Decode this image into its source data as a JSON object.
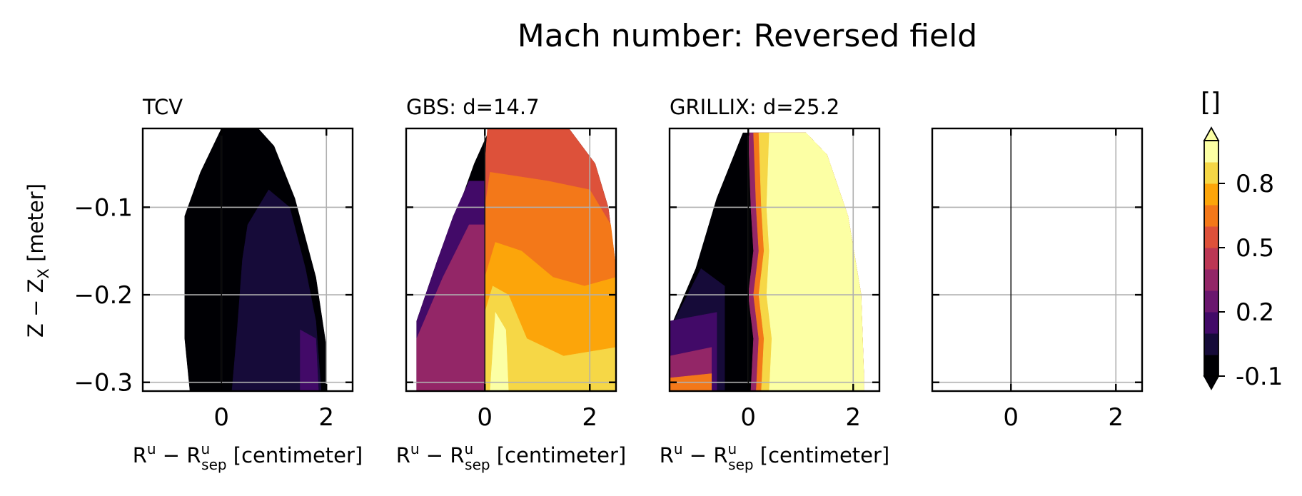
{
  "figure": {
    "title": "Mach number: Reversed field",
    "shared_ylabel_main": "Z − Z",
    "shared_ylabel_sub": "X",
    "shared_ylabel_unit": " [meter]",
    "xlabel_main": "R",
    "xlabel_sup1": "u",
    "xlabel_mid": " − R",
    "xlabel_sup2": "u",
    "xlabel_sub": "sep",
    "xlabel_unit": " [centimeter]"
  },
  "colorbar": {
    "unit_label": "[]",
    "tick_labels": [
      "-0.1",
      "0.2",
      "0.5",
      "0.8"
    ],
    "tick_values": [
      -0.1,
      0.2,
      0.5,
      0.8
    ],
    "levels": [
      -0.1,
      0.0,
      0.1,
      0.2,
      0.3,
      0.4,
      0.5,
      0.6,
      0.7,
      0.8,
      0.9,
      1.0
    ],
    "colors": [
      "#000004",
      "#160b39",
      "#420a68",
      "#6a176e",
      "#932667",
      "#bc3754",
      "#dd513a",
      "#f37819",
      "#fca50a",
      "#f6d746",
      "#fcffa4"
    ],
    "extend": "both",
    "colormap": "inferno"
  },
  "chart_data": [
    {
      "type": "heatmap",
      "title": "TCV",
      "xlim": [
        -1.5,
        2.5
      ],
      "ylim": [
        -0.31,
        -0.01
      ],
      "x_ticks": [
        0,
        2
      ],
      "y_ticks": [
        -0.1,
        -0.2,
        -0.3
      ],
      "y_tick_labels": [
        "−0.1",
        "−0.2",
        "−0.3"
      ],
      "grid": true,
      "separatrix_x": 0,
      "boundary": [
        [
          0.0,
          -0.01
        ],
        [
          0.7,
          -0.01
        ],
        [
          1.0,
          -0.03
        ],
        [
          1.4,
          -0.09
        ],
        [
          1.8,
          -0.18
        ],
        [
          2.0,
          -0.26
        ],
        [
          2.0,
          -0.31
        ],
        [
          -0.6,
          -0.31
        ],
        [
          -0.7,
          -0.25
        ],
        [
          -0.7,
          -0.11
        ],
        [
          -0.4,
          -0.06
        ]
      ],
      "bands": [
        {
          "value": -0.1,
          "polygon": [
            [
              0.0,
              -0.01
            ],
            [
              0.7,
              -0.01
            ],
            [
              1.0,
              -0.03
            ],
            [
              1.4,
              -0.09
            ],
            [
              1.8,
              -0.18
            ],
            [
              2.0,
              -0.26
            ],
            [
              2.0,
              -0.31
            ],
            [
              -0.6,
              -0.31
            ],
            [
              -0.7,
              -0.25
            ],
            [
              -0.7,
              -0.11
            ],
            [
              -0.4,
              -0.06
            ]
          ]
        },
        {
          "value": 0.0,
          "polygon": [
            [
              0.5,
              -0.12
            ],
            [
              0.9,
              -0.08
            ],
            [
              1.3,
              -0.1
            ],
            [
              1.6,
              -0.17
            ],
            [
              1.8,
              -0.23
            ],
            [
              1.9,
              -0.31
            ],
            [
              0.2,
              -0.31
            ],
            [
              0.3,
              -0.24
            ],
            [
              0.4,
              -0.16
            ]
          ]
        },
        {
          "value": 0.1,
          "polygon": [
            [
              1.5,
              -0.24
            ],
            [
              1.8,
              -0.25
            ],
            [
              1.85,
              -0.31
            ],
            [
              1.5,
              -0.31
            ]
          ]
        }
      ]
    },
    {
      "type": "heatmap",
      "title": "GBS: d=14.7",
      "xlim": [
        -1.5,
        2.5
      ],
      "ylim": [
        -0.31,
        -0.01
      ],
      "x_ticks": [
        0,
        2
      ],
      "y_ticks": [
        -0.1,
        -0.2,
        -0.3
      ],
      "grid": true,
      "separatrix_x": 0,
      "boundary": [
        [
          0.1,
          -0.01
        ],
        [
          1.6,
          -0.01
        ],
        [
          2.1,
          -0.05
        ],
        [
          2.35,
          -0.1
        ],
        [
          2.5,
          -0.17
        ],
        [
          2.5,
          -0.31
        ],
        [
          -1.3,
          -0.31
        ],
        [
          -1.3,
          -0.23
        ],
        [
          -0.9,
          -0.16
        ],
        [
          -0.5,
          -0.1
        ],
        [
          -0.2,
          -0.05
        ]
      ],
      "bands": [
        {
          "value": -0.1,
          "polygon": [
            [
              0.1,
              -0.01
            ],
            [
              1.6,
              -0.01
            ],
            [
              2.1,
              -0.05
            ],
            [
              2.35,
              -0.1
            ],
            [
              2.5,
              -0.17
            ],
            [
              2.5,
              -0.31
            ],
            [
              -1.3,
              -0.31
            ],
            [
              -1.3,
              -0.23
            ],
            [
              -0.9,
              -0.16
            ],
            [
              -0.5,
              -0.1
            ],
            [
              -0.2,
              -0.05
            ]
          ]
        },
        {
          "value": 0.1,
          "polygon": [
            [
              -0.3,
              -0.07
            ],
            [
              0.0,
              -0.07
            ],
            [
              0.0,
              -0.31
            ],
            [
              -1.3,
              -0.31
            ],
            [
              -1.3,
              -0.23
            ],
            [
              -0.9,
              -0.16
            ],
            [
              -0.6,
              -0.11
            ]
          ]
        },
        {
          "value": 0.3,
          "polygon": [
            [
              -0.3,
              -0.12
            ],
            [
              0.0,
              -0.12
            ],
            [
              0.0,
              -0.31
            ],
            [
              -1.3,
              -0.31
            ],
            [
              -1.3,
              -0.25
            ],
            [
              -0.8,
              -0.18
            ]
          ]
        },
        {
          "value": 0.5,
          "polygon": [
            [
              0.05,
              -0.01
            ],
            [
              1.6,
              -0.01
            ],
            [
              2.1,
              -0.05
            ],
            [
              2.35,
              -0.1
            ],
            [
              2.5,
              -0.17
            ],
            [
              2.5,
              -0.31
            ],
            [
              0.0,
              -0.31
            ],
            [
              0.0,
              -0.05
            ]
          ]
        },
        {
          "value": 0.6,
          "polygon": [
            [
              0.1,
              -0.06
            ],
            [
              1.2,
              -0.07
            ],
            [
              2.0,
              -0.08
            ],
            [
              2.4,
              -0.12
            ],
            [
              2.5,
              -0.17
            ],
            [
              2.5,
              -0.31
            ],
            [
              0.0,
              -0.31
            ],
            [
              0.0,
              -0.1
            ]
          ]
        },
        {
          "value": 0.7,
          "polygon": [
            [
              0.2,
              -0.14
            ],
            [
              0.7,
              -0.15
            ],
            [
              1.3,
              -0.18
            ],
            [
              1.9,
              -0.19
            ],
            [
              2.5,
              -0.18
            ],
            [
              2.5,
              -0.31
            ],
            [
              0.0,
              -0.31
            ],
            [
              0.0,
              -0.18
            ]
          ]
        },
        {
          "value": 0.8,
          "polygon": [
            [
              0.15,
              -0.19
            ],
            [
              0.45,
              -0.2
            ],
            [
              0.8,
              -0.25
            ],
            [
              1.5,
              -0.27
            ],
            [
              2.5,
              -0.26
            ],
            [
              2.5,
              -0.31
            ],
            [
              0.0,
              -0.31
            ],
            [
              0.0,
              -0.22
            ]
          ]
        },
        {
          "value": 0.9,
          "polygon": [
            [
              0.2,
              -0.22
            ],
            [
              0.4,
              -0.24
            ],
            [
              0.45,
              -0.31
            ],
            [
              0.1,
              -0.31
            ]
          ]
        }
      ]
    },
    {
      "type": "heatmap",
      "title": "GRILLIX: d=25.2",
      "xlim": [
        -1.5,
        2.5
      ],
      "ylim": [
        -0.31,
        -0.01
      ],
      "x_ticks": [
        0,
        2
      ],
      "y_ticks": [
        -0.1,
        -0.2,
        -0.3
      ],
      "grid": true,
      "separatrix_x": 0,
      "boundary": [
        [
          -0.1,
          -0.015
        ],
        [
          1.1,
          -0.015
        ],
        [
          1.5,
          -0.04
        ],
        [
          1.9,
          -0.11
        ],
        [
          2.15,
          -0.2
        ],
        [
          2.2,
          -0.29
        ],
        [
          2.2,
          -0.31
        ],
        [
          -1.5,
          -0.31
        ],
        [
          -1.5,
          -0.24
        ],
        [
          -1.0,
          -0.17
        ],
        [
          -0.6,
          -0.09
        ]
      ],
      "bands": [
        {
          "value": -0.1,
          "polygon": [
            [
              -0.1,
              -0.015
            ],
            [
              1.1,
              -0.015
            ],
            [
              1.5,
              -0.04
            ],
            [
              1.9,
              -0.11
            ],
            [
              2.15,
              -0.2
            ],
            [
              2.2,
              -0.29
            ],
            [
              2.2,
              -0.31
            ],
            [
              -1.5,
              -0.31
            ],
            [
              -1.5,
              -0.24
            ],
            [
              -1.0,
              -0.17
            ],
            [
              -0.6,
              -0.09
            ]
          ]
        },
        {
          "value": 0.0,
          "polygon": [
            [
              -0.9,
              -0.17
            ],
            [
              -0.45,
              -0.19
            ],
            [
              -0.45,
              -0.31
            ],
            [
              -1.5,
              -0.31
            ],
            [
              -1.5,
              -0.24
            ]
          ]
        },
        {
          "value": 0.1,
          "polygon": [
            [
              -1.5,
              -0.23
            ],
            [
              -0.6,
              -0.22
            ],
            [
              -0.6,
              -0.31
            ],
            [
              -1.5,
              -0.31
            ]
          ]
        },
        {
          "value": 0.3,
          "polygon": [
            [
              -1.5,
              -0.27
            ],
            [
              -0.7,
              -0.26
            ],
            [
              -0.7,
              -0.31
            ],
            [
              -1.5,
              -0.31
            ]
          ]
        },
        {
          "value": 0.6,
          "polygon": [
            [
              -1.5,
              -0.295
            ],
            [
              -0.7,
              -0.29
            ],
            [
              -0.7,
              -0.31
            ],
            [
              -1.5,
              -0.31
            ]
          ]
        },
        {
          "value": 0.3,
          "polygon": [
            [
              0.0,
              -0.015
            ],
            [
              1.1,
              -0.015
            ],
            [
              1.5,
              -0.04
            ],
            [
              1.9,
              -0.11
            ],
            [
              2.15,
              -0.2
            ],
            [
              2.2,
              -0.29
            ],
            [
              2.2,
              -0.31
            ],
            [
              0.05,
              -0.31
            ],
            [
              0.1,
              -0.25
            ],
            [
              0.0,
              -0.2
            ],
            [
              0.1,
              -0.15
            ],
            [
              0.05,
              -0.1
            ]
          ]
        },
        {
          "value": 0.6,
          "polygon": [
            [
              0.1,
              -0.015
            ],
            [
              1.1,
              -0.015
            ],
            [
              1.5,
              -0.04
            ],
            [
              1.9,
              -0.11
            ],
            [
              2.15,
              -0.2
            ],
            [
              2.2,
              -0.29
            ],
            [
              2.2,
              -0.31
            ],
            [
              0.15,
              -0.31
            ],
            [
              0.2,
              -0.25
            ],
            [
              0.1,
              -0.2
            ],
            [
              0.2,
              -0.15
            ],
            [
              0.15,
              -0.1
            ]
          ]
        },
        {
          "value": 0.8,
          "polygon": [
            [
              0.2,
              -0.015
            ],
            [
              1.1,
              -0.015
            ],
            [
              1.5,
              -0.04
            ],
            [
              1.9,
              -0.11
            ],
            [
              2.15,
              -0.2
            ],
            [
              2.2,
              -0.29
            ],
            [
              2.2,
              -0.31
            ],
            [
              0.25,
              -0.31
            ],
            [
              0.3,
              -0.25
            ],
            [
              0.2,
              -0.2
            ],
            [
              0.3,
              -0.15
            ],
            [
              0.25,
              -0.1
            ]
          ]
        },
        {
          "value": 0.9,
          "polygon": [
            [
              0.4,
              -0.015
            ],
            [
              1.1,
              -0.015
            ],
            [
              1.5,
              -0.04
            ],
            [
              1.9,
              -0.11
            ],
            [
              2.15,
              -0.2
            ],
            [
              2.2,
              -0.29
            ],
            [
              2.2,
              -0.31
            ],
            [
              0.4,
              -0.31
            ],
            [
              0.45,
              -0.25
            ],
            [
              0.35,
              -0.2
            ],
            [
              0.4,
              -0.15
            ],
            [
              0.35,
              -0.1
            ]
          ]
        },
        {
          "value": 1.0,
          "polygon": [
            [
              0.6,
              -0.03
            ],
            [
              1.1,
              -0.03
            ],
            [
              1.45,
              -0.06
            ],
            [
              1.85,
              -0.12
            ],
            [
              2.1,
              -0.2
            ],
            [
              2.15,
              -0.29
            ],
            [
              2.15,
              -0.31
            ],
            [
              0.5,
              -0.31
            ],
            [
              0.55,
              -0.25
            ],
            [
              0.45,
              -0.2
            ],
            [
              0.5,
              -0.15
            ],
            [
              0.45,
              -0.1
            ]
          ]
        }
      ]
    },
    {
      "type": "heatmap",
      "title": "",
      "xlim": [
        -1.5,
        2.5
      ],
      "ylim": [
        -0.31,
        -0.01
      ],
      "x_ticks": [
        0,
        2
      ],
      "y_ticks": [
        -0.1,
        -0.2,
        -0.3
      ],
      "grid": true,
      "separatrix_x": 0,
      "boundary": [],
      "bands": []
    }
  ]
}
